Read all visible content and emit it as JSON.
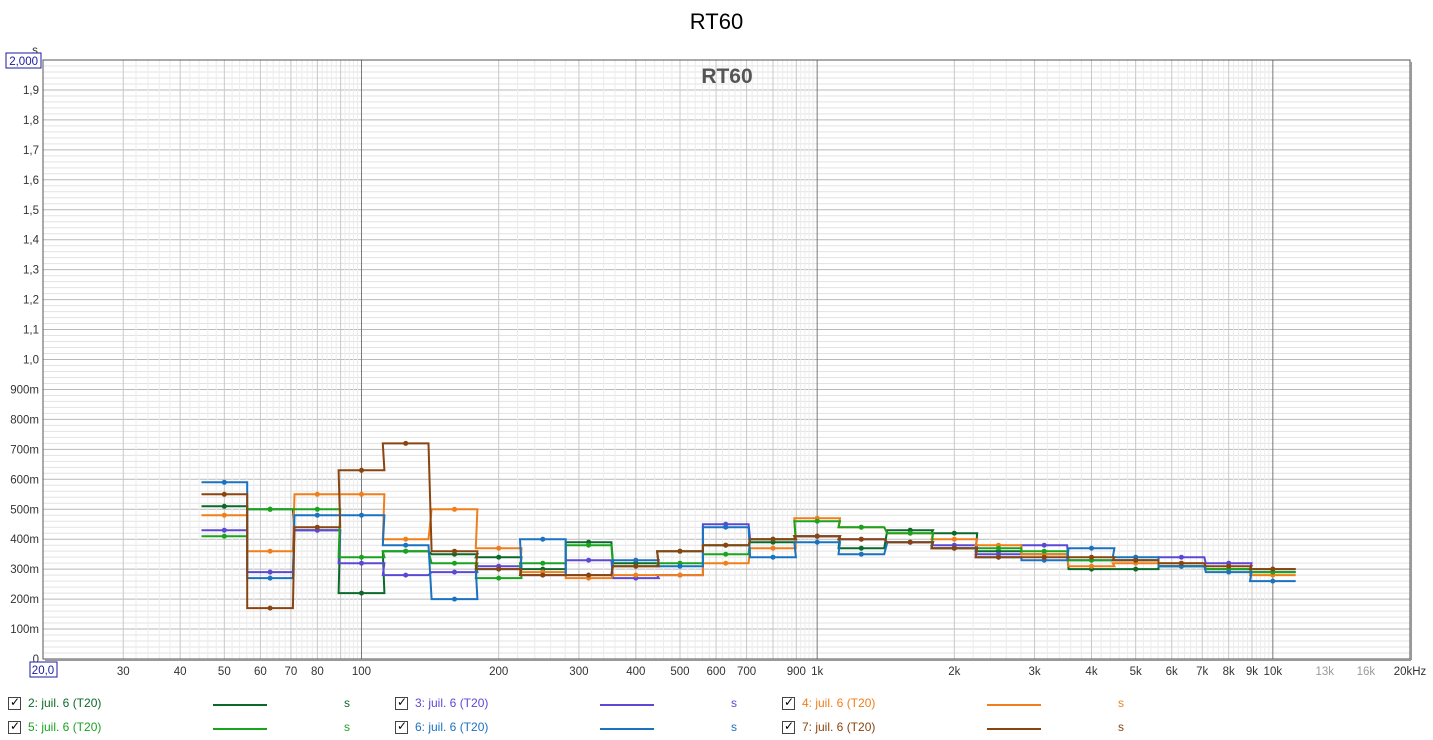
{
  "title": "RT60",
  "chart_data": {
    "type": "line",
    "title": "RT60",
    "inner_title": "RT60",
    "y_unit": "s",
    "x_scale": "log",
    "xlim": [
      20,
      20000
    ],
    "ylim": [
      0,
      2.0
    ],
    "x_min_box": "20,0",
    "y_max_box": "2,000",
    "y_ticks": [
      {
        "v": 0,
        "label": "0"
      },
      {
        "v": 0.1,
        "label": "100m"
      },
      {
        "v": 0.2,
        "label": "200m"
      },
      {
        "v": 0.3,
        "label": "300m"
      },
      {
        "v": 0.4,
        "label": "400m"
      },
      {
        "v": 0.5,
        "label": "500m"
      },
      {
        "v": 0.6,
        "label": "600m"
      },
      {
        "v": 0.7,
        "label": "700m"
      },
      {
        "v": 0.8,
        "label": "800m"
      },
      {
        "v": 0.9,
        "label": "900m"
      },
      {
        "v": 1.0,
        "label": "1,0"
      },
      {
        "v": 1.1,
        "label": "1,1"
      },
      {
        "v": 1.2,
        "label": "1,2"
      },
      {
        "v": 1.3,
        "label": "1,3"
      },
      {
        "v": 1.4,
        "label": "1,4"
      },
      {
        "v": 1.5,
        "label": "1,5"
      },
      {
        "v": 1.6,
        "label": "1,6"
      },
      {
        "v": 1.7,
        "label": "1,7"
      },
      {
        "v": 1.8,
        "label": "1,8"
      },
      {
        "v": 1.9,
        "label": "1,9"
      }
    ],
    "x_ticks": [
      {
        "v": 30,
        "label": "30"
      },
      {
        "v": 40,
        "label": "40"
      },
      {
        "v": 50,
        "label": "50"
      },
      {
        "v": 60,
        "label": "60"
      },
      {
        "v": 70,
        "label": "70"
      },
      {
        "v": 80,
        "label": "80"
      },
      {
        "v": 100,
        "label": "100"
      },
      {
        "v": 200,
        "label": "200"
      },
      {
        "v": 300,
        "label": "300"
      },
      {
        "v": 400,
        "label": "400"
      },
      {
        "v": 500,
        "label": "500"
      },
      {
        "v": 600,
        "label": "600"
      },
      {
        "v": 700,
        "label": "700"
      },
      {
        "v": 900,
        "label": "900"
      },
      {
        "v": 1000,
        "label": "1k"
      },
      {
        "v": 2000,
        "label": "2k"
      },
      {
        "v": 3000,
        "label": "3k"
      },
      {
        "v": 4000,
        "label": "4k"
      },
      {
        "v": 5000,
        "label": "5k"
      },
      {
        "v": 6000,
        "label": "6k"
      },
      {
        "v": 7000,
        "label": "7k"
      },
      {
        "v": 8000,
        "label": "8k"
      },
      {
        "v": 9000,
        "label": "9k"
      },
      {
        "v": 10000,
        "label": "10k"
      },
      {
        "v": 13000,
        "label": "13k",
        "dim": true
      },
      {
        "v": 16000,
        "label": "16k",
        "dim": true
      },
      {
        "v": 20000,
        "label": "20kHz"
      }
    ],
    "bands": [
      50,
      63,
      80,
      100,
      125,
      160,
      200,
      250,
      315,
      400,
      500,
      630,
      800,
      1000,
      1250,
      1600,
      2000,
      2500,
      3150,
      4000,
      5000,
      6300,
      8000,
      10000
    ],
    "series": [
      {
        "name": "2: juil. 6 (T20)",
        "color": "#0b6a2a",
        "values": [
          0.51,
          0.5,
          0.43,
          0.22,
          0.36,
          0.35,
          0.34,
          0.3,
          0.39,
          0.32,
          0.36,
          0.38,
          0.39,
          0.41,
          0.37,
          0.43,
          0.42,
          0.36,
          0.35,
          0.3,
          0.3,
          0.31,
          0.3,
          0.29
        ]
      },
      {
        "name": "3: juil. 6 (T20)",
        "color": "#5b49d6",
        "values": [
          0.43,
          0.29,
          0.43,
          0.32,
          0.28,
          0.29,
          0.31,
          0.28,
          0.33,
          0.27,
          0.28,
          0.45,
          0.4,
          0.41,
          0.4,
          0.39,
          0.38,
          0.35,
          0.38,
          0.33,
          0.33,
          0.34,
          0.32,
          0.3
        ]
      },
      {
        "name": "4: juil. 6 (T20)",
        "color": "#f07e1a",
        "values": [
          0.48,
          0.36,
          0.55,
          0.55,
          0.4,
          0.5,
          0.37,
          0.29,
          0.27,
          0.28,
          0.28,
          0.32,
          0.37,
          0.47,
          0.44,
          0.42,
          0.4,
          0.38,
          0.35,
          0.31,
          0.32,
          0.32,
          0.3,
          0.28
        ]
      },
      {
        "name": "5: juil. 6 (T20)",
        "color": "#1aa31f",
        "values": [
          0.41,
          0.5,
          0.5,
          0.34,
          0.36,
          0.32,
          0.27,
          0.32,
          0.38,
          0.31,
          0.32,
          0.35,
          0.4,
          0.46,
          0.44,
          0.42,
          0.37,
          0.37,
          0.36,
          0.33,
          0.33,
          0.31,
          0.3,
          0.29
        ]
      },
      {
        "name": "6: juil. 6 (T20)",
        "color": "#1a72c0",
        "values": [
          0.59,
          0.27,
          0.48,
          0.48,
          0.38,
          0.2,
          0.3,
          0.4,
          0.28,
          0.33,
          0.31,
          0.44,
          0.34,
          0.39,
          0.35,
          0.39,
          0.37,
          0.34,
          0.33,
          0.37,
          0.34,
          0.31,
          0.29,
          0.26
        ]
      },
      {
        "name": "7: juil. 6 (T20)",
        "color": "#8a4410",
        "values": [
          0.55,
          0.17,
          0.44,
          0.63,
          0.72,
          0.36,
          0.3,
          0.28,
          0.28,
          0.31,
          0.36,
          0.38,
          0.4,
          0.41,
          0.4,
          0.39,
          0.37,
          0.34,
          0.34,
          0.34,
          0.33,
          0.32,
          0.31,
          0.3
        ]
      }
    ]
  },
  "legend": [
    {
      "label": "2: juil. 6 (T20)",
      "unit": "s",
      "color": "#0b6a2a",
      "checked": true
    },
    {
      "label": "3: juil. 6 (T20)",
      "unit": "s",
      "color": "#5b49d6",
      "checked": true
    },
    {
      "label": "4: juil. 6 (T20)",
      "unit": "s",
      "color": "#f07e1a",
      "checked": true
    },
    {
      "label": "5: juil. 6 (T20)",
      "unit": "s",
      "color": "#1aa31f",
      "checked": true
    },
    {
      "label": "6: juil. 6 (T20)",
      "unit": "s",
      "color": "#1a72c0",
      "checked": true
    },
    {
      "label": "7: juil. 6 (T20)",
      "unit": "s",
      "color": "#8a4410",
      "checked": true
    }
  ]
}
